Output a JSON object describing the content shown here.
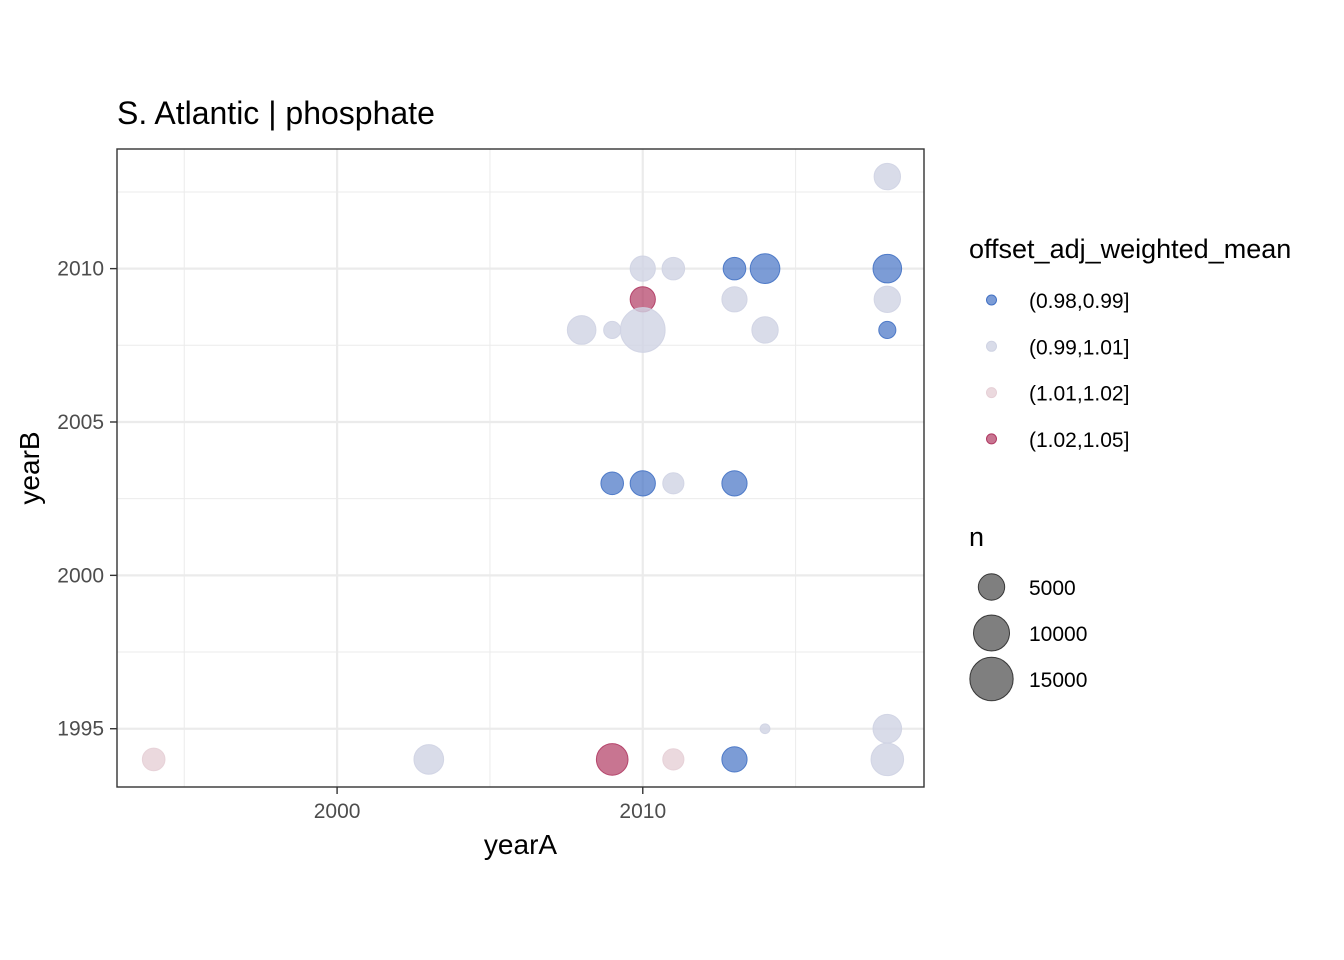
{
  "chart_data": {
    "type": "scatter",
    "title": "S. Atlantic | phosphate",
    "xlabel": "yearA",
    "ylabel": "yearB",
    "xlim": [
      1992.8,
      2019.2
    ],
    "ylim": [
      1993.1,
      2013.9
    ],
    "x_ticks": [
      2000,
      2010
    ],
    "y_ticks": [
      1995,
      2000,
      2005,
      2010
    ],
    "grid": true,
    "legend_position": "right",
    "color_legend": {
      "title": "offset_adj_weighted_mean",
      "entries": [
        {
          "label": "(0.98,0.99]",
          "color": "#4472c4"
        },
        {
          "label": "(0.99,1.01]",
          "color": "#cfd3e3"
        },
        {
          "label": "(1.01,1.02]",
          "color": "#e6cfd6"
        },
        {
          "label": "(1.02,1.05]",
          "color": "#b03a63"
        }
      ]
    },
    "size_legend": {
      "title": "n",
      "entries": [
        {
          "label": "5000",
          "value": 5000
        },
        {
          "label": "10000",
          "value": 10000
        },
        {
          "label": "15000",
          "value": 15000
        }
      ]
    },
    "points": [
      {
        "x": 2018,
        "y": 2013,
        "n": 5000,
        "group": 1
      },
      {
        "x": 2010,
        "y": 2010,
        "n": 4500,
        "group": 1
      },
      {
        "x": 2011,
        "y": 2010,
        "n": 3500,
        "group": 1
      },
      {
        "x": 2013,
        "y": 2010,
        "n": 3500,
        "group": 0
      },
      {
        "x": 2014,
        "y": 2010,
        "n": 6500,
        "group": 0
      },
      {
        "x": 2018,
        "y": 2010,
        "n": 6000,
        "group": 0
      },
      {
        "x": 2010,
        "y": 2009,
        "n": 4500,
        "group": 3
      },
      {
        "x": 2013,
        "y": 2009,
        "n": 4500,
        "group": 1
      },
      {
        "x": 2018,
        "y": 2009,
        "n": 5000,
        "group": 1
      },
      {
        "x": 2008,
        "y": 2008,
        "n": 6000,
        "group": 1
      },
      {
        "x": 2009,
        "y": 2008,
        "n": 1800,
        "group": 1
      },
      {
        "x": 2010,
        "y": 2008,
        "n": 16000,
        "group": 1
      },
      {
        "x": 2014,
        "y": 2008,
        "n": 5000,
        "group": 1
      },
      {
        "x": 2018,
        "y": 2008,
        "n": 1800,
        "group": 0
      },
      {
        "x": 2009,
        "y": 2003,
        "n": 3500,
        "group": 0
      },
      {
        "x": 2010,
        "y": 2003,
        "n": 4500,
        "group": 0
      },
      {
        "x": 2011,
        "y": 2003,
        "n": 3000,
        "group": 1
      },
      {
        "x": 2013,
        "y": 2003,
        "n": 4500,
        "group": 0
      },
      {
        "x": 2014,
        "y": 1995,
        "n": 400,
        "group": 1
      },
      {
        "x": 2018,
        "y": 1995,
        "n": 6000,
        "group": 1
      },
      {
        "x": 1994,
        "y": 1994,
        "n": 3500,
        "group": 2
      },
      {
        "x": 2003,
        "y": 1994,
        "n": 6500,
        "group": 1
      },
      {
        "x": 2009,
        "y": 1994,
        "n": 7500,
        "group": 3
      },
      {
        "x": 2011,
        "y": 1994,
        "n": 3000,
        "group": 2
      },
      {
        "x": 2013,
        "y": 1994,
        "n": 4500,
        "group": 0
      },
      {
        "x": 2018,
        "y": 1994,
        "n": 8000,
        "group": 1
      }
    ]
  }
}
